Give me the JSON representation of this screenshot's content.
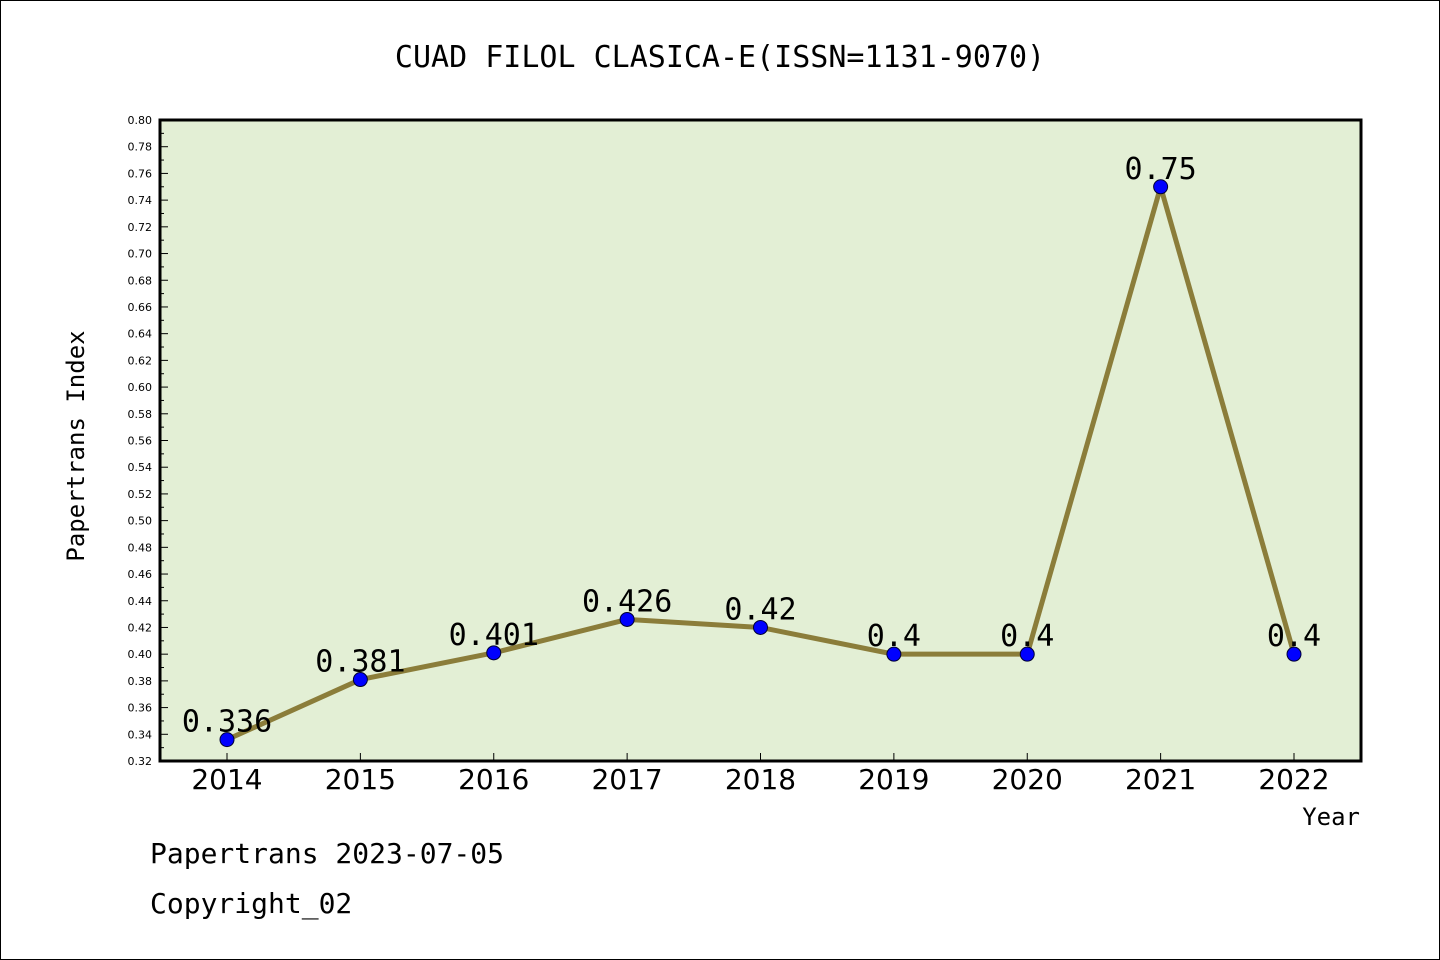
{
  "chart_data": {
    "type": "line",
    "title": "CUAD FILOL CLASICA-E(ISSN=1131-9070)",
    "xlabel": "Year",
    "ylabel": "Papertrans Index",
    "categories": [
      "2014",
      "2015",
      "2016",
      "2017",
      "2018",
      "2019",
      "2020",
      "2021",
      "2022"
    ],
    "series": [
      {
        "values": [
          0.336,
          0.381,
          0.401,
          0.426,
          0.42,
          0.4,
          0.4,
          0.75,
          0.4
        ],
        "labels": [
          "0.336",
          "0.381",
          "0.401",
          "0.426",
          "0.42",
          "0.4",
          "0.4",
          "0.75",
          "0.4"
        ],
        "line_color": "#8b7d3a",
        "marker_color": "#0000ff"
      }
    ],
    "ylim": [
      0.32,
      0.8
    ],
    "yticks": [
      "0.32",
      "0.34",
      "0.36",
      "0.38",
      "0.40",
      "0.42",
      "0.44",
      "0.46",
      "0.48",
      "0.50",
      "0.52",
      "0.54",
      "0.56",
      "0.58",
      "0.60",
      "0.62",
      "0.64",
      "0.66",
      "0.68",
      "0.70",
      "0.72",
      "0.74",
      "0.76",
      "0.78",
      "0.80"
    ],
    "plot_background": "#e3efd5",
    "grid": false,
    "legend": "none"
  },
  "footer": {
    "line1": "Papertrans 2023-07-05",
    "line2": "Copyright_02"
  }
}
